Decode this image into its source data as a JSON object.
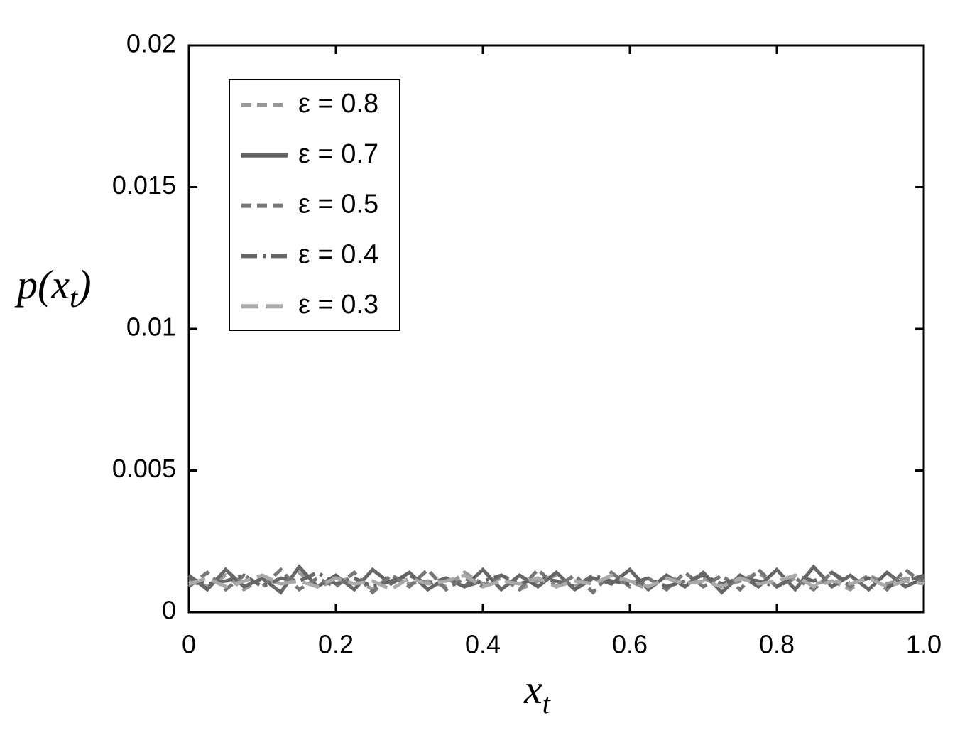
{
  "chart_data": {
    "type": "line",
    "xlabel": [
      "x",
      "t"
    ],
    "ylabel": [
      "p(x",
      "t",
      ")"
    ],
    "x": [
      0,
      0.025,
      0.05,
      0.075,
      0.1,
      0.125,
      0.15,
      0.175,
      0.2,
      0.225,
      0.25,
      0.275,
      0.3,
      0.325,
      0.35,
      0.375,
      0.4,
      0.425,
      0.45,
      0.475,
      0.5,
      0.525,
      0.55,
      0.575,
      0.6,
      0.625,
      0.65,
      0.675,
      0.7,
      0.725,
      0.75,
      0.775,
      0.8,
      0.825,
      0.85,
      0.875,
      0.9,
      0.925,
      0.95,
      0.975,
      1
    ],
    "series": [
      {
        "name": "ε = 0.8",
        "color": "#999999",
        "style": "dashed",
        "values": [
          0.0011,
          0.0009,
          0.0013,
          0.0008,
          0.0012,
          0.001,
          0.0014,
          0.0009,
          0.0011,
          0.0012,
          0.0008,
          0.0013,
          0.001,
          0.0011,
          0.0009,
          0.0014,
          0.001,
          0.0012,
          0.0008,
          0.0011,
          0.0013,
          0.0009,
          0.0012,
          0.001,
          0.0011,
          0.0008,
          0.0013,
          0.001,
          0.0012,
          0.0009,
          0.0011,
          0.0014,
          0.0009,
          0.0012,
          0.001,
          0.0011,
          0.0008,
          0.0013,
          0.001,
          0.0012,
          0.0011
        ]
      },
      {
        "name": "ε = 0.7",
        "color": "#666666",
        "style": "solid",
        "values": [
          0.0013,
          0.0008,
          0.0015,
          0.0009,
          0.0012,
          0.0007,
          0.0016,
          0.0009,
          0.0013,
          0.0008,
          0.0015,
          0.001,
          0.0014,
          0.0008,
          0.0012,
          0.0009,
          0.0015,
          0.0008,
          0.0013,
          0.0009,
          0.0014,
          0.0008,
          0.0012,
          0.001,
          0.0015,
          0.0008,
          0.0013,
          0.0009,
          0.0014,
          0.0007,
          0.0013,
          0.0009,
          0.0015,
          0.0008,
          0.0016,
          0.0009,
          0.0013,
          0.0008,
          0.0014,
          0.0009,
          0.0012
        ]
      },
      {
        "name": "ε = 0.5",
        "color": "#777777",
        "style": "dashed",
        "values": [
          0.0009,
          0.0014,
          0.0008,
          0.0013,
          0.0009,
          0.0015,
          0.0008,
          0.0012,
          0.0009,
          0.0014,
          0.0007,
          0.0013,
          0.0009,
          0.0015,
          0.0008,
          0.0012,
          0.0009,
          0.0013,
          0.0008,
          0.0015,
          0.0009,
          0.0013,
          0.0007,
          0.0014,
          0.0009,
          0.0012,
          0.0008,
          0.0014,
          0.0009,
          0.0013,
          0.0008,
          0.0015,
          0.0009,
          0.0012,
          0.0008,
          0.0014,
          0.0009,
          0.0013,
          0.0008,
          0.0015,
          0.001
        ]
      },
      {
        "name": "ε = 0.4",
        "color": "#666666",
        "style": "dashdot",
        "values": [
          0.0012,
          0.001,
          0.0011,
          0.0013,
          0.0009,
          0.0012,
          0.0011,
          0.0014,
          0.001,
          0.0012,
          0.0009,
          0.0011,
          0.0013,
          0.001,
          0.0012,
          0.0009,
          0.0011,
          0.0013,
          0.001,
          0.0012,
          0.0011,
          0.0009,
          0.0013,
          0.0011,
          0.001,
          0.0012,
          0.0009,
          0.0011,
          0.0013,
          0.001,
          0.0012,
          0.0011,
          0.0009,
          0.0013,
          0.0011,
          0.0014,
          0.001,
          0.0012,
          0.0009,
          0.0011,
          0.0013
        ]
      },
      {
        "name": "ε = 0.3",
        "color": "#aaaaaa",
        "style": "longdash",
        "values": [
          0.001,
          0.0012,
          0.0009,
          0.0011,
          0.0013,
          0.001,
          0.0011,
          0.0009,
          0.0012,
          0.001,
          0.0011,
          0.0008,
          0.0012,
          0.001,
          0.0011,
          0.0013,
          0.0009,
          0.0011,
          0.001,
          0.0012,
          0.0009,
          0.0011,
          0.001,
          0.0013,
          0.0011,
          0.0009,
          0.0012,
          0.001,
          0.0011,
          0.0009,
          0.0012,
          0.001,
          0.0011,
          0.0013,
          0.0009,
          0.0011,
          0.001,
          0.0012,
          0.0009,
          0.0011,
          0.001
        ]
      }
    ],
    "xlim": [
      0,
      1
    ],
    "xticks": [
      0,
      0.2,
      0.4,
      0.6,
      0.8,
      {
        "value": 1,
        "label": "1.0"
      }
    ],
    "ylim": [
      0,
      0.02
    ],
    "yticks": [
      0,
      0.005,
      0.01,
      0.015,
      0.02
    ],
    "legend": "upper left"
  }
}
